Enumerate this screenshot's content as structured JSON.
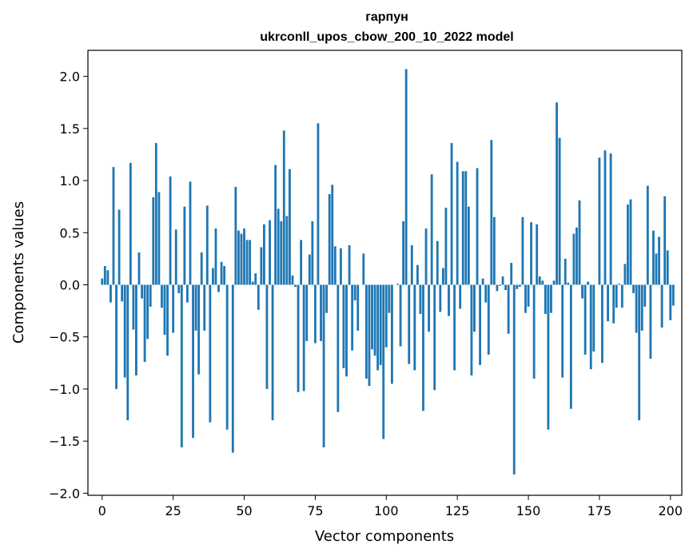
{
  "chart_data": {
    "type": "bar",
    "title": [
      "гарпун",
      "ukrconll_upos_cbow_200_10_2022 model"
    ],
    "xlabel": "Vector components",
    "ylabel": "Components values",
    "xlim": [
      -5,
      204
    ],
    "ylim": [
      -2.02,
      2.25
    ],
    "xticks": [
      0,
      25,
      50,
      75,
      100,
      125,
      150,
      175,
      200
    ],
    "xtick_labels": [
      "0",
      "25",
      "50",
      "75",
      "100",
      "125",
      "150",
      "175",
      "200"
    ],
    "yticks": [
      -2.0,
      -1.5,
      -1.0,
      -0.5,
      0.0,
      0.5,
      1.0,
      1.5,
      2.0
    ],
    "ytick_labels": [
      "−2.0",
      "−1.5",
      "−1.0",
      "−0.5",
      "0.0",
      "0.5",
      "1.0",
      "1.5",
      "2.0"
    ],
    "bar_color": "#1f77b4",
    "grid": false,
    "series": [
      {
        "values": [
          0.06,
          0.18,
          0.14,
          -0.17,
          1.13,
          -1.0,
          0.72,
          -0.16,
          -0.89,
          -1.3,
          1.17,
          -0.43,
          -0.87,
          0.31,
          -0.13,
          -0.74,
          -0.52,
          -0.21,
          0.84,
          1.36,
          0.89,
          -0.22,
          -0.48,
          -0.68,
          1.04,
          -0.46,
          0.53,
          -0.08,
          -1.56,
          0.75,
          -0.17,
          0.99,
          -1.47,
          -0.44,
          -0.86,
          0.31,
          -0.44,
          0.76,
          -1.32,
          0.16,
          0.54,
          -0.07,
          0.22,
          0.18,
          -1.39,
          0.0,
          -1.61,
          0.94,
          0.52,
          0.49,
          0.54,
          0.43,
          0.43,
          0.03,
          0.11,
          -0.24,
          0.36,
          0.58,
          -1.0,
          0.62,
          -1.3,
          1.15,
          0.73,
          0.61,
          1.48,
          0.66,
          1.11,
          0.09,
          -0.02,
          -1.03,
          0.43,
          -1.02,
          -0.54,
          0.29,
          0.61,
          -0.56,
          1.55,
          -0.54,
          -1.56,
          -0.27,
          0.87,
          0.96,
          0.37,
          -1.22,
          0.35,
          -0.8,
          -0.88,
          0.38,
          -0.63,
          -0.15,
          -0.44,
          0.0,
          0.3,
          -0.9,
          -0.97,
          -0.62,
          -0.68,
          -0.82,
          -0.77,
          -1.48,
          -0.6,
          -0.27,
          -0.95,
          0.0,
          0.01,
          -0.59,
          0.61,
          2.07,
          -0.76,
          0.38,
          -0.82,
          0.19,
          -0.28,
          -1.21,
          0.54,
          -0.45,
          1.06,
          -1.01,
          0.42,
          -0.26,
          0.16,
          0.74,
          -0.3,
          1.36,
          -0.82,
          1.18,
          -0.23,
          1.09,
          1.09,
          0.75,
          -0.87,
          -0.45,
          1.12,
          -0.77,
          0.06,
          -0.17,
          -0.67,
          1.39,
          0.65,
          -0.06,
          -0.01,
          0.08,
          -0.05,
          -0.47,
          0.21,
          -1.82,
          -0.04,
          -0.02,
          0.65,
          -0.27,
          -0.21,
          0.6,
          -0.9,
          0.58,
          0.08,
          0.04,
          -0.28,
          -1.39,
          -0.27,
          0.04,
          1.75,
          1.41,
          -0.89,
          0.25,
          0.02,
          -1.19,
          0.49,
          0.55,
          0.81,
          -0.13,
          -0.67,
          0.03,
          -0.81,
          -0.64,
          0.0,
          1.22,
          -0.75,
          1.29,
          -0.35,
          1.26,
          -0.37,
          -0.22,
          0.01,
          -0.22,
          0.2,
          0.77,
          0.82,
          -0.08,
          -0.46,
          -1.3,
          -0.44,
          -0.21,
          0.95,
          -0.71,
          0.52,
          0.3,
          0.46,
          -0.41,
          0.85,
          0.33,
          -0.34,
          -0.2
        ]
      }
    ]
  }
}
